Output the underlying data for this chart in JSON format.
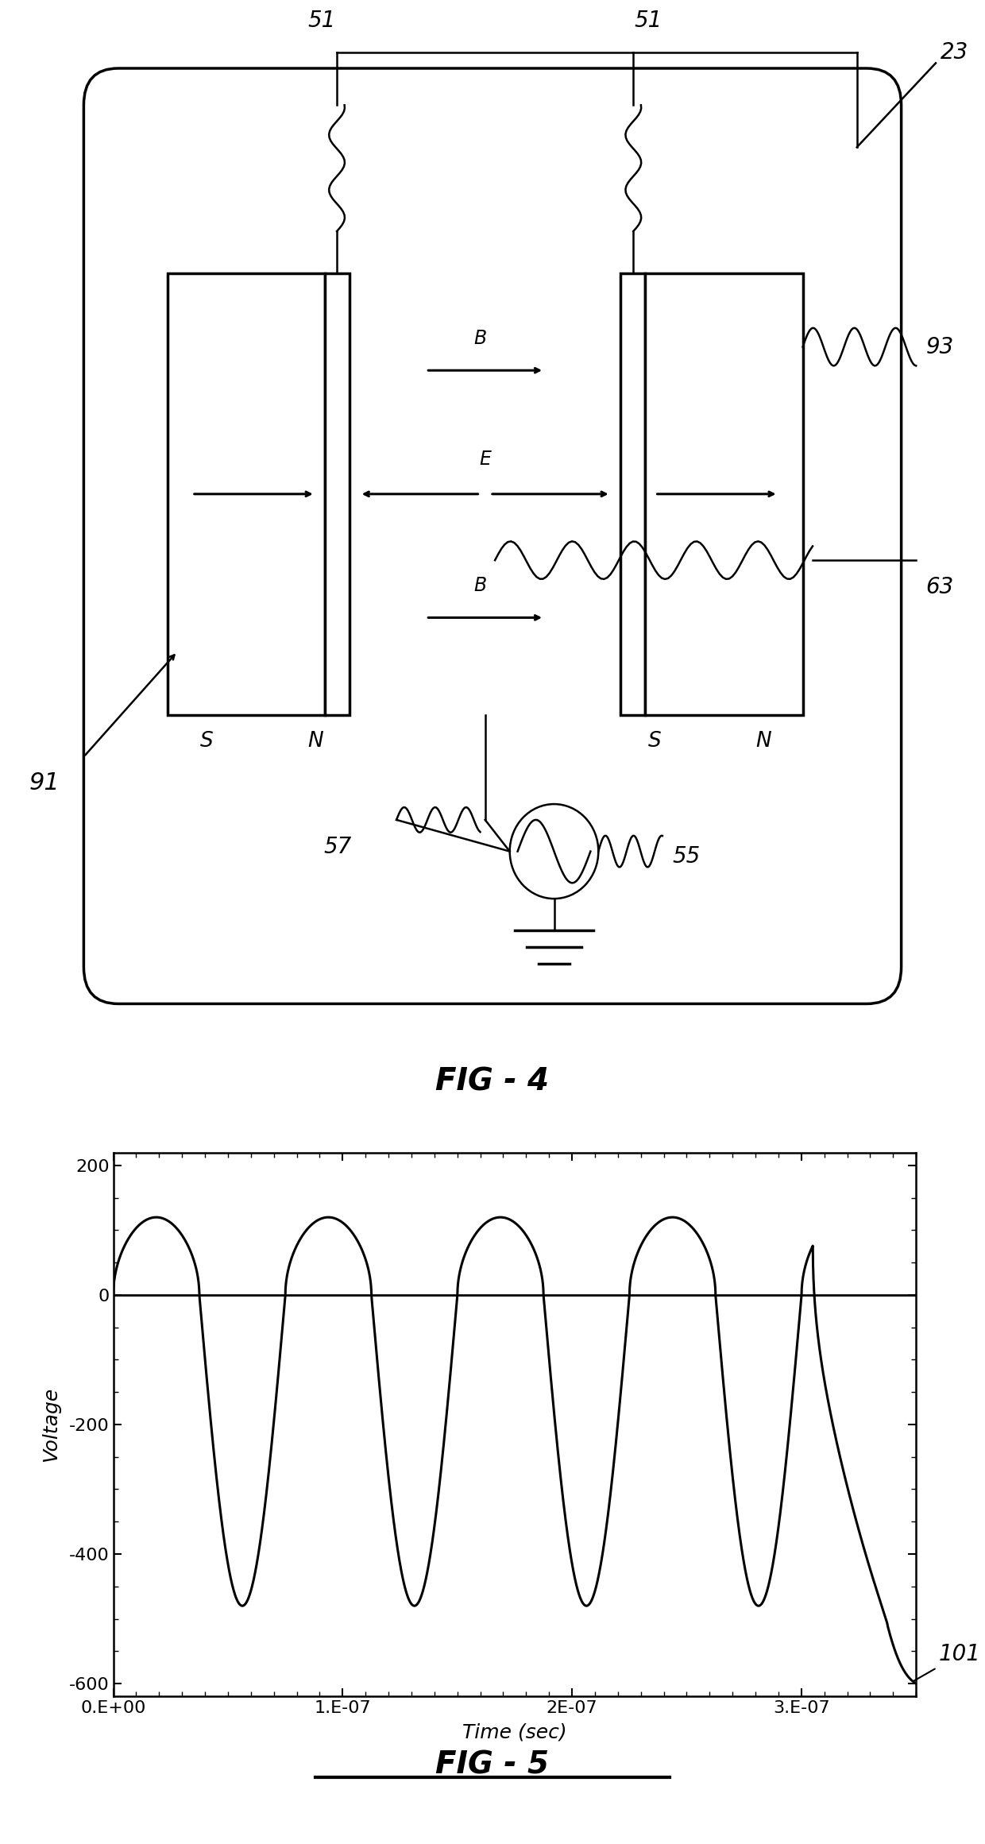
{
  "fig4_title": "FIG - 4",
  "fig5_title": "FIG - 5",
  "labels": {
    "51a": "51",
    "51b": "51",
    "23": "23",
    "93": "93",
    "63": "63",
    "57": "57",
    "55": "55",
    "91": "91",
    "B_top": "B",
    "E_mid": "E",
    "B_bot": "B",
    "S1": "S",
    "N1": "N",
    "S2": "S",
    "N2": "N",
    "101": "101"
  },
  "plot_xlim": [
    0,
    3.5e-07
  ],
  "plot_ylim": [
    -620,
    220
  ],
  "plot_yticks": [
    -600,
    -400,
    -200,
    0,
    200
  ],
  "plot_xtick_labels": [
    "0.E+00",
    "1.E-07",
    "2E-07",
    "3.E-07"
  ],
  "plot_xtick_vals": [
    0,
    1e-07,
    2e-07,
    3e-07
  ],
  "xlabel": "Time (sec)",
  "ylabel": "Voltage",
  "line_color": "#000000",
  "bg_color": "#ffffff",
  "text_color": "#000000"
}
